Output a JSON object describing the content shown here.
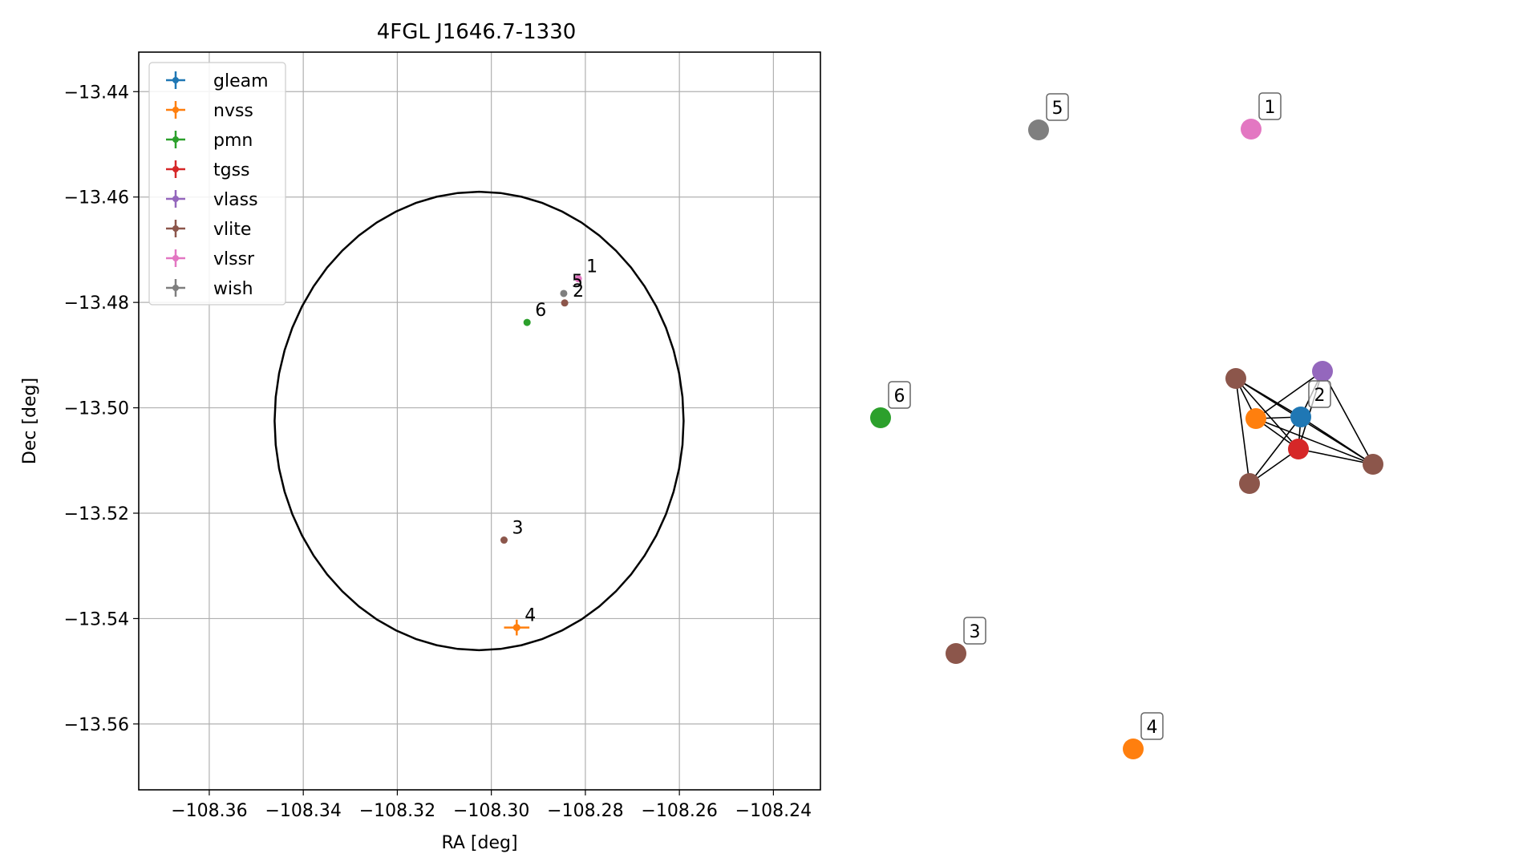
{
  "chart_data": [
    {
      "type": "scatter",
      "title": "4FGL J1646.7-1330",
      "xlabel": "RA [deg]",
      "ylabel": "Dec [deg]",
      "xlim": [
        -108.375,
        -108.23
      ],
      "ylim": [
        -13.5725,
        -13.4325
      ],
      "grid": true,
      "legend_position": "top-left",
      "xticks": [
        -108.36,
        -108.34,
        -108.32,
        -108.3,
        -108.28,
        -108.26,
        -108.24
      ],
      "xtick_labels": [
        "−108.36",
        "−108.34",
        "−108.32",
        "−108.30",
        "−108.28",
        "−108.26",
        "−108.24"
      ],
      "yticks": [
        -13.44,
        -13.46,
        -13.48,
        -13.5,
        -13.52,
        -13.54,
        -13.56
      ],
      "ytick_labels": [
        "−13.44",
        "−13.46",
        "−13.48",
        "−13.50",
        "−13.52",
        "−13.54",
        "−13.56"
      ],
      "circle": {
        "center": [
          -108.3026,
          -13.5025
        ],
        "radius_deg": 0.0435,
        "color": "#000000"
      },
      "series": [
        {
          "name": "gleam",
          "color": "#1f77b4",
          "points": []
        },
        {
          "name": "nvss",
          "color": "#ff7f0e",
          "points": [
            {
              "x": -108.2946,
              "y": -13.5417,
              "label": "4",
              "xerr": 0.0027,
              "yerr": 0.0015
            }
          ]
        },
        {
          "name": "pmn",
          "color": "#2ca02c",
          "points": [
            {
              "x": -108.2924,
              "y": -13.4838,
              "label": "6"
            }
          ]
        },
        {
          "name": "tgss",
          "color": "#d62728",
          "points": []
        },
        {
          "name": "vlass",
          "color": "#9467bd",
          "points": []
        },
        {
          "name": "vlite",
          "color": "#8c564b",
          "points": [
            {
              "x": -108.2844,
              "y": -13.4801,
              "label": "2"
            },
            {
              "x": -108.2973,
              "y": -13.5251,
              "label": "3"
            }
          ]
        },
        {
          "name": "vlssr",
          "color": "#e377c2",
          "points": [
            {
              "x": -108.2815,
              "y": -13.4755,
              "label": "1"
            }
          ]
        },
        {
          "name": "wish",
          "color": "#7f7f7f",
          "points": [
            {
              "x": -108.2846,
              "y": -13.4783,
              "label": "5"
            }
          ]
        }
      ]
    },
    {
      "type": "network",
      "nodes": [
        {
          "id": "n1",
          "color": "#e377c2",
          "label": "1"
        },
        {
          "id": "n5",
          "color": "#7f7f7f",
          "label": "5"
        },
        {
          "id": "n6",
          "color": "#2ca02c",
          "label": "6"
        },
        {
          "id": "n3",
          "color": "#8c564b",
          "label": "3"
        },
        {
          "id": "n4",
          "color": "#ff7f0e",
          "label": "4"
        },
        {
          "id": "gleam",
          "color": "#1f77b4",
          "label": "2"
        },
        {
          "id": "nvss",
          "color": "#ff7f0e",
          "label": ""
        },
        {
          "id": "tgss",
          "color": "#d62728",
          "label": ""
        },
        {
          "id": "vlass",
          "color": "#9467bd",
          "label": ""
        },
        {
          "id": "vlite_a",
          "color": "#8c564b",
          "label": ""
        },
        {
          "id": "vlite_b",
          "color": "#8c564b",
          "label": ""
        },
        {
          "id": "vlite_c",
          "color": "#8c564b",
          "label": ""
        }
      ],
      "edges": [
        [
          "vlite_a",
          "gleam"
        ],
        [
          "vlite_a",
          "nvss"
        ],
        [
          "vlite_a",
          "tgss"
        ],
        [
          "vlite_a",
          "vlite_b"
        ],
        [
          "vlite_a",
          "vlite_c"
        ],
        [
          "nvss",
          "gleam"
        ],
        [
          "nvss",
          "tgss"
        ],
        [
          "nvss",
          "vlite_b"
        ],
        [
          "nvss",
          "vlass"
        ],
        [
          "gleam",
          "tgss"
        ],
        [
          "gleam",
          "vlass"
        ],
        [
          "gleam",
          "vlite_c"
        ],
        [
          "gleam",
          "vlite_b"
        ],
        [
          "tgss",
          "vlass"
        ],
        [
          "tgss",
          "vlite_b"
        ],
        [
          "tgss",
          "vlite_c"
        ],
        [
          "vlass",
          "vlite_b"
        ]
      ]
    }
  ]
}
